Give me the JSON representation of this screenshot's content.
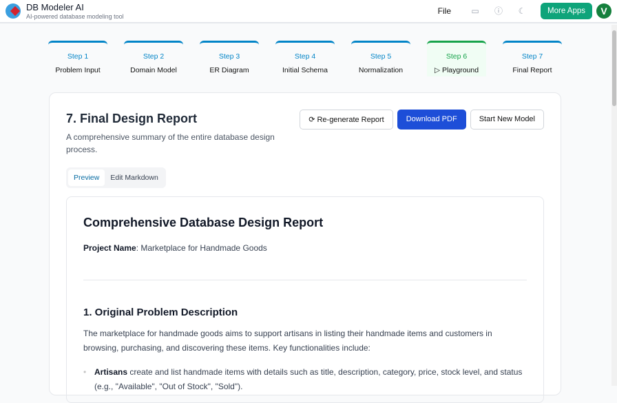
{
  "app": {
    "title": "DB Modeler AI",
    "subtitle": "AI-powered database modeling tool",
    "file_menu": "File",
    "more_apps": "More Apps",
    "avatar_initial": "V",
    "icons": [
      "print-icon",
      "help-icon",
      "theme-icon"
    ]
  },
  "steps": [
    {
      "num": "Step 1",
      "label": "Problem Input"
    },
    {
      "num": "Step 2",
      "label": "Domain Model"
    },
    {
      "num": "Step 3",
      "label": "ER Diagram"
    },
    {
      "num": "Step 4",
      "label": "Initial Schema"
    },
    {
      "num": "Step 5",
      "label": "Normalization"
    },
    {
      "num": "Step 6",
      "label": "Playground",
      "active": true
    },
    {
      "num": "Step 7",
      "label": "Final Report"
    }
  ],
  "report": {
    "title": "7. Final Design Report",
    "subtitle": "A comprehensive summary of the entire database design process.",
    "regenerate": "Re-generate Report",
    "download": "Download PDF",
    "new_model": "Start New Model",
    "tabs": [
      "Preview",
      "Edit Markdown"
    ],
    "doc": {
      "heading": "Comprehensive Database Design Report",
      "project_label": "Project Name",
      "project_value": ": Marketplace for Handmade Goods",
      "section1": "1. Original Problem Description",
      "para": "The marketplace for handmade goods aims to support artisans in listing their handmade items and customers in browsing, purchasing, and discovering these items. Key functionalities include:",
      "bullet_bold": "Artisans",
      "bullet_text": " create and list handmade items with details such as title, description, category, price, stock level, and status (e.g., \"Available\", \"Out of Stock\", \"Sold\")."
    }
  },
  "colors": {
    "accent": "#0284c7",
    "active_step": "#16a34a",
    "primary": "#1d4ed8",
    "more_apps": "#0ea47a"
  }
}
